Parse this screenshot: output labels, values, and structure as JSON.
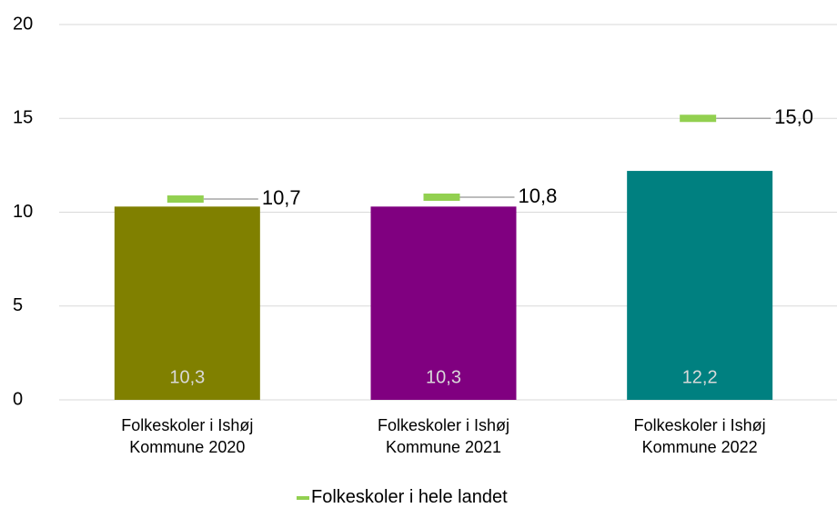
{
  "chart_data": {
    "type": "bar",
    "categories": [
      "Folkeskoler i Ishøj Kommune 2020",
      "Folkeskoler i Ishøj Kommune 2021",
      "Folkeskoler i Ishøj Kommune 2022"
    ],
    "values": [
      10.3,
      10.3,
      12.2
    ],
    "value_labels": [
      "10,3",
      "10,3",
      "12,2"
    ],
    "colors": [
      "#808000",
      "#800080",
      "#008080"
    ],
    "series": [
      {
        "name": "Folkeskoler i hele landet",
        "color": "#92d050",
        "values": [
          10.7,
          10.8,
          15.0
        ],
        "value_labels": [
          "10,7",
          "10,8",
          "15,0"
        ]
      }
    ],
    "ylim": [
      0,
      20
    ],
    "yticks": [
      0,
      5,
      10,
      15,
      20
    ],
    "grid": true,
    "legend": "bottom"
  }
}
